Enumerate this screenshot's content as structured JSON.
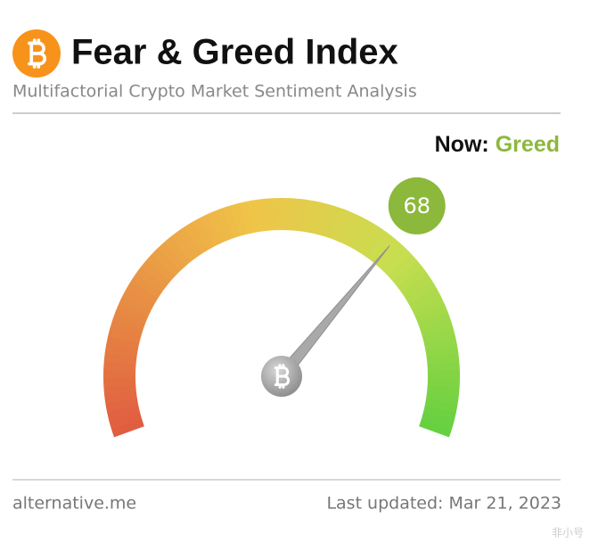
{
  "title": "Fear & Greed Index",
  "subtitle": "Multifactorial Crypto Market Sentiment Analysis",
  "chart_data": {
    "type": "gauge",
    "now_label": "Now:",
    "classification": "Greed",
    "value": 68,
    "color": "#8cb83c",
    "ylim": [
      0,
      100
    ]
  },
  "footer": {
    "source": "alternative.me",
    "updated": "Last updated: Mar 21, 2023"
  },
  "watermark": "非小号"
}
